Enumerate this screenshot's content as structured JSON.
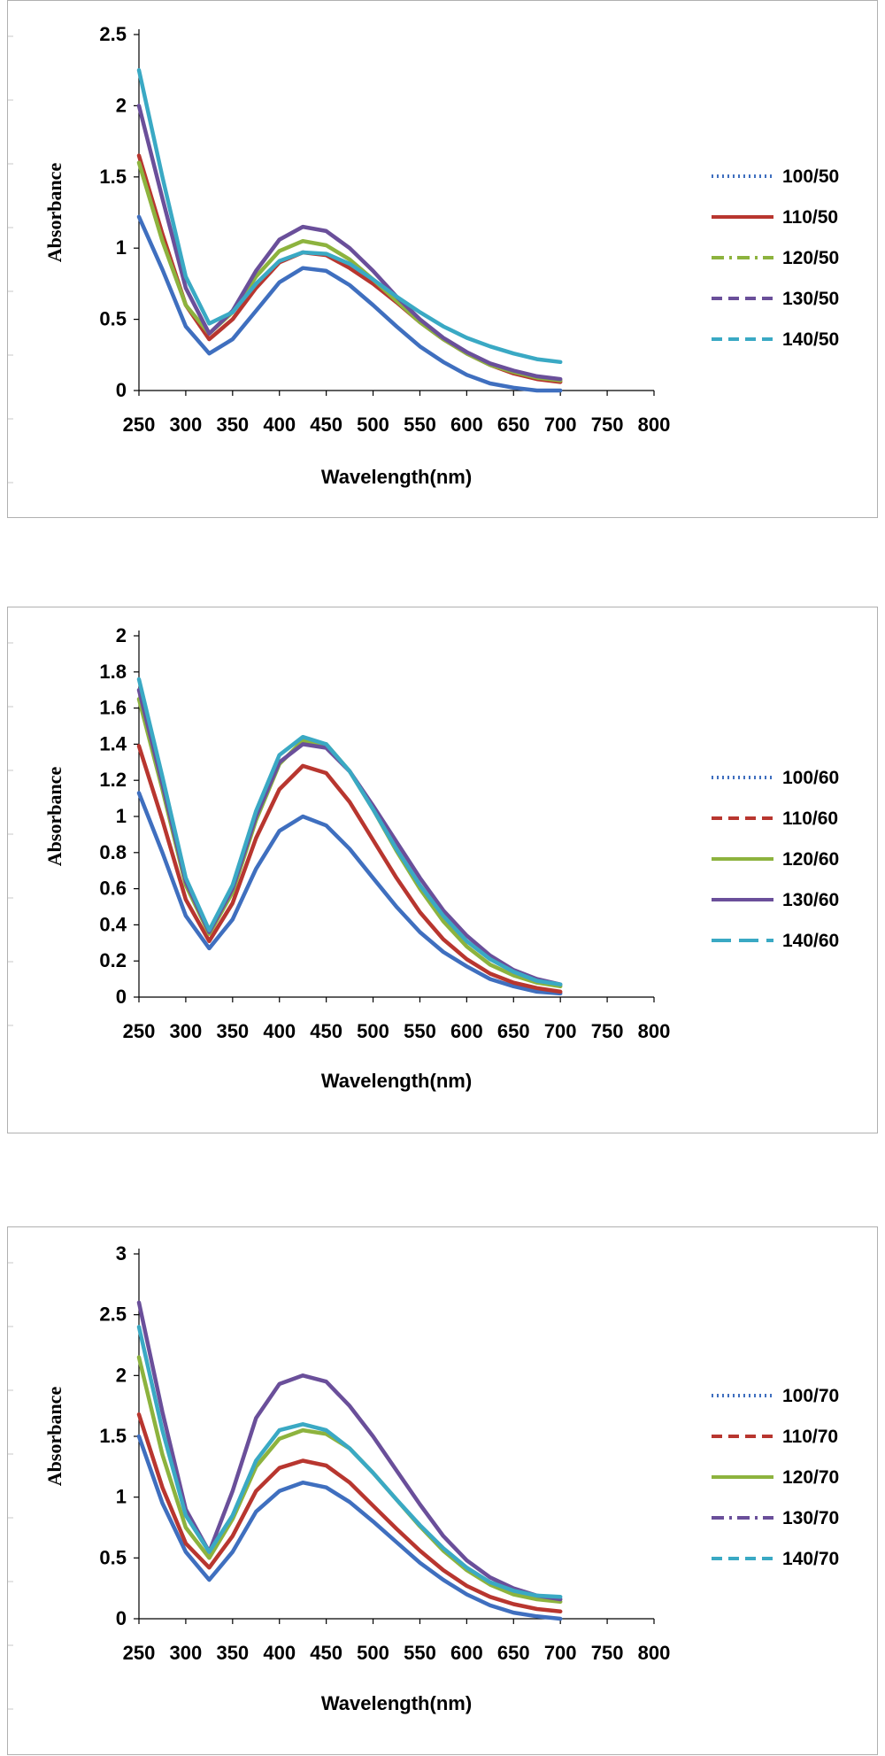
{
  "chart_data": [
    {
      "type": "line",
      "xlabel": "Wavelength(nm)",
      "ylabel": "Absorbance",
      "xlim": [
        250,
        800
      ],
      "ylim": [
        0,
        2.5
      ],
      "xticks": [
        "250",
        "300",
        "350",
        "400",
        "450",
        "500",
        "550",
        "600",
        "650",
        "700",
        "750",
        "800"
      ],
      "yticks": [
        "0",
        "0.5",
        "1",
        "1.5",
        "2",
        "2.5"
      ],
      "legend_position": "right",
      "series": [
        {
          "name": "100/50",
          "color": "#3f6fbf",
          "dash": "dotted",
          "x": [
            250,
            275,
            300,
            325,
            350,
            375,
            400,
            425,
            450,
            475,
            500,
            525,
            550,
            575,
            600,
            625,
            650,
            675,
            700
          ],
          "y": [
            1.22,
            0.85,
            0.45,
            0.26,
            0.36,
            0.56,
            0.76,
            0.86,
            0.84,
            0.74,
            0.6,
            0.45,
            0.31,
            0.2,
            0.11,
            0.05,
            0.02,
            0.0,
            0.0
          ]
        },
        {
          "name": "110/50",
          "color": "#b8362f",
          "dash": "solid",
          "x": [
            250,
            275,
            300,
            325,
            350,
            375,
            400,
            425,
            450,
            475,
            500,
            525,
            550,
            575,
            600,
            625,
            650,
            675,
            700
          ],
          "y": [
            1.65,
            1.1,
            0.6,
            0.36,
            0.5,
            0.72,
            0.9,
            0.97,
            0.95,
            0.86,
            0.75,
            0.62,
            0.48,
            0.36,
            0.26,
            0.18,
            0.12,
            0.08,
            0.06
          ]
        },
        {
          "name": "120/50",
          "color": "#8db33e",
          "dash": "dashdot",
          "x": [
            250,
            275,
            300,
            325,
            350,
            375,
            400,
            425,
            450,
            475,
            500,
            525,
            550,
            575,
            600,
            625,
            650,
            675,
            700
          ],
          "y": [
            1.6,
            1.05,
            0.6,
            0.4,
            0.55,
            0.8,
            0.98,
            1.05,
            1.02,
            0.92,
            0.78,
            0.63,
            0.48,
            0.36,
            0.26,
            0.18,
            0.13,
            0.09,
            0.07
          ]
        },
        {
          "name": "130/50",
          "color": "#6a4f9a",
          "dash": "dashed",
          "x": [
            250,
            275,
            300,
            325,
            350,
            375,
            400,
            425,
            450,
            475,
            500,
            525,
            550,
            575,
            600,
            625,
            650,
            675,
            700
          ],
          "y": [
            2.0,
            1.35,
            0.72,
            0.4,
            0.56,
            0.84,
            1.06,
            1.15,
            1.12,
            1.0,
            0.84,
            0.66,
            0.5,
            0.37,
            0.27,
            0.19,
            0.14,
            0.1,
            0.08
          ]
        },
        {
          "name": "140/50",
          "color": "#3aa9c4",
          "dash": "dashed",
          "x": [
            250,
            275,
            300,
            325,
            350,
            375,
            400,
            425,
            450,
            475,
            500,
            525,
            550,
            575,
            600,
            625,
            650,
            675,
            700
          ],
          "y": [
            2.25,
            1.5,
            0.8,
            0.47,
            0.55,
            0.75,
            0.91,
            0.97,
            0.96,
            0.89,
            0.78,
            0.66,
            0.55,
            0.45,
            0.37,
            0.31,
            0.26,
            0.22,
            0.2
          ]
        }
      ]
    },
    {
      "type": "line",
      "xlabel": "Wavelength(nm)",
      "ylabel": "Absorbance",
      "xlim": [
        250,
        800
      ],
      "ylim": [
        0,
        2
      ],
      "xticks": [
        "250",
        "300",
        "350",
        "400",
        "450",
        "500",
        "550",
        "600",
        "650",
        "700",
        "750",
        "800"
      ],
      "yticks": [
        "0",
        "0.2",
        "0.4",
        "0.6",
        "0.8",
        "1",
        "1.2",
        "1.4",
        "1.6",
        "1.8",
        "2"
      ],
      "legend_position": "right",
      "series": [
        {
          "name": "100/60",
          "color": "#3f6fbf",
          "dash": "dotted",
          "x": [
            250,
            275,
            300,
            325,
            350,
            375,
            400,
            425,
            450,
            475,
            500,
            525,
            550,
            575,
            600,
            625,
            650,
            675,
            700
          ],
          "y": [
            1.13,
            0.8,
            0.45,
            0.27,
            0.43,
            0.71,
            0.92,
            1.0,
            0.95,
            0.82,
            0.66,
            0.5,
            0.36,
            0.25,
            0.17,
            0.1,
            0.06,
            0.03,
            0.02
          ]
        },
        {
          "name": "110/60",
          "color": "#b8362f",
          "dash": "dashed",
          "x": [
            250,
            275,
            300,
            325,
            350,
            375,
            400,
            425,
            450,
            475,
            500,
            525,
            550,
            575,
            600,
            625,
            650,
            675,
            700
          ],
          "y": [
            1.39,
            0.98,
            0.54,
            0.31,
            0.52,
            0.88,
            1.15,
            1.28,
            1.24,
            1.08,
            0.87,
            0.66,
            0.47,
            0.32,
            0.21,
            0.13,
            0.08,
            0.05,
            0.03
          ]
        },
        {
          "name": "120/60",
          "color": "#8db33e",
          "dash": "solid",
          "x": [
            250,
            275,
            300,
            325,
            350,
            375,
            400,
            425,
            450,
            475,
            500,
            525,
            550,
            575,
            600,
            625,
            650,
            675,
            700
          ],
          "y": [
            1.65,
            1.15,
            0.62,
            0.35,
            0.58,
            0.98,
            1.29,
            1.42,
            1.4,
            1.25,
            1.04,
            0.81,
            0.6,
            0.42,
            0.28,
            0.18,
            0.12,
            0.08,
            0.06
          ]
        },
        {
          "name": "130/60",
          "color": "#6a4f9a",
          "dash": "solid",
          "x": [
            250,
            275,
            300,
            325,
            350,
            375,
            400,
            425,
            450,
            475,
            500,
            525,
            550,
            575,
            600,
            625,
            650,
            675,
            700
          ],
          "y": [
            1.7,
            1.18,
            0.64,
            0.36,
            0.6,
            1.0,
            1.3,
            1.4,
            1.38,
            1.25,
            1.06,
            0.86,
            0.66,
            0.48,
            0.34,
            0.23,
            0.15,
            0.1,
            0.07
          ]
        },
        {
          "name": "140/60",
          "color": "#3aa9c4",
          "dash": "longdash",
          "x": [
            250,
            275,
            300,
            325,
            350,
            375,
            400,
            425,
            450,
            475,
            500,
            525,
            550,
            575,
            600,
            625,
            650,
            675,
            700
          ],
          "y": [
            1.76,
            1.22,
            0.66,
            0.37,
            0.62,
            1.03,
            1.34,
            1.44,
            1.4,
            1.25,
            1.04,
            0.82,
            0.62,
            0.45,
            0.31,
            0.21,
            0.14,
            0.09,
            0.07
          ]
        }
      ]
    },
    {
      "type": "line",
      "xlabel": "Wavelength(nm)",
      "ylabel": "Absorbance",
      "xlim": [
        250,
        800
      ],
      "ylim": [
        0,
        3
      ],
      "xticks": [
        "250",
        "300",
        "350",
        "400",
        "450",
        "500",
        "550",
        "600",
        "650",
        "700",
        "750",
        "800"
      ],
      "yticks": [
        "0",
        "0.5",
        "1",
        "1.5",
        "2",
        "2.5",
        "3"
      ],
      "legend_position": "right",
      "series": [
        {
          "name": "100/70",
          "color": "#3f6fbf",
          "dash": "dotted",
          "x": [
            250,
            275,
            300,
            325,
            350,
            375,
            400,
            425,
            450,
            475,
            500,
            525,
            550,
            575,
            600,
            625,
            650,
            675,
            700
          ],
          "y": [
            1.5,
            0.95,
            0.55,
            0.32,
            0.55,
            0.88,
            1.05,
            1.12,
            1.08,
            0.96,
            0.8,
            0.63,
            0.46,
            0.32,
            0.2,
            0.11,
            0.05,
            0.02,
            0.0
          ]
        },
        {
          "name": "110/70",
          "color": "#b8362f",
          "dash": "dashed",
          "x": [
            250,
            275,
            300,
            325,
            350,
            375,
            400,
            425,
            450,
            475,
            500,
            525,
            550,
            575,
            600,
            625,
            650,
            675,
            700
          ],
          "y": [
            1.68,
            1.08,
            0.62,
            0.42,
            0.68,
            1.05,
            1.24,
            1.3,
            1.26,
            1.12,
            0.93,
            0.74,
            0.56,
            0.4,
            0.27,
            0.18,
            0.12,
            0.08,
            0.06
          ]
        },
        {
          "name": "120/70",
          "color": "#8db33e",
          "dash": "solid",
          "x": [
            250,
            275,
            300,
            325,
            350,
            375,
            400,
            425,
            450,
            475,
            500,
            525,
            550,
            575,
            600,
            625,
            650,
            675,
            700
          ],
          "y": [
            2.15,
            1.35,
            0.75,
            0.5,
            0.82,
            1.25,
            1.48,
            1.55,
            1.52,
            1.4,
            1.2,
            0.98,
            0.76,
            0.56,
            0.4,
            0.28,
            0.2,
            0.16,
            0.14
          ]
        },
        {
          "name": "130/70",
          "color": "#6a4f9a",
          "dash": "dashdot",
          "x": [
            250,
            275,
            300,
            325,
            350,
            375,
            400,
            425,
            450,
            475,
            500,
            525,
            550,
            575,
            600,
            625,
            650,
            675,
            700
          ],
          "y": [
            2.6,
            1.7,
            0.9,
            0.55,
            1.05,
            1.65,
            1.93,
            2.0,
            1.95,
            1.75,
            1.5,
            1.22,
            0.94,
            0.68,
            0.48,
            0.34,
            0.25,
            0.19,
            0.16
          ]
        },
        {
          "name": "140/70",
          "color": "#3aa9c4",
          "dash": "dashed",
          "x": [
            250,
            275,
            300,
            325,
            350,
            375,
            400,
            425,
            450,
            475,
            500,
            525,
            550,
            575,
            600,
            625,
            650,
            675,
            700
          ],
          "y": [
            2.4,
            1.55,
            0.85,
            0.55,
            0.85,
            1.3,
            1.55,
            1.6,
            1.55,
            1.4,
            1.2,
            0.98,
            0.77,
            0.58,
            0.42,
            0.3,
            0.23,
            0.19,
            0.18
          ]
        }
      ]
    }
  ]
}
